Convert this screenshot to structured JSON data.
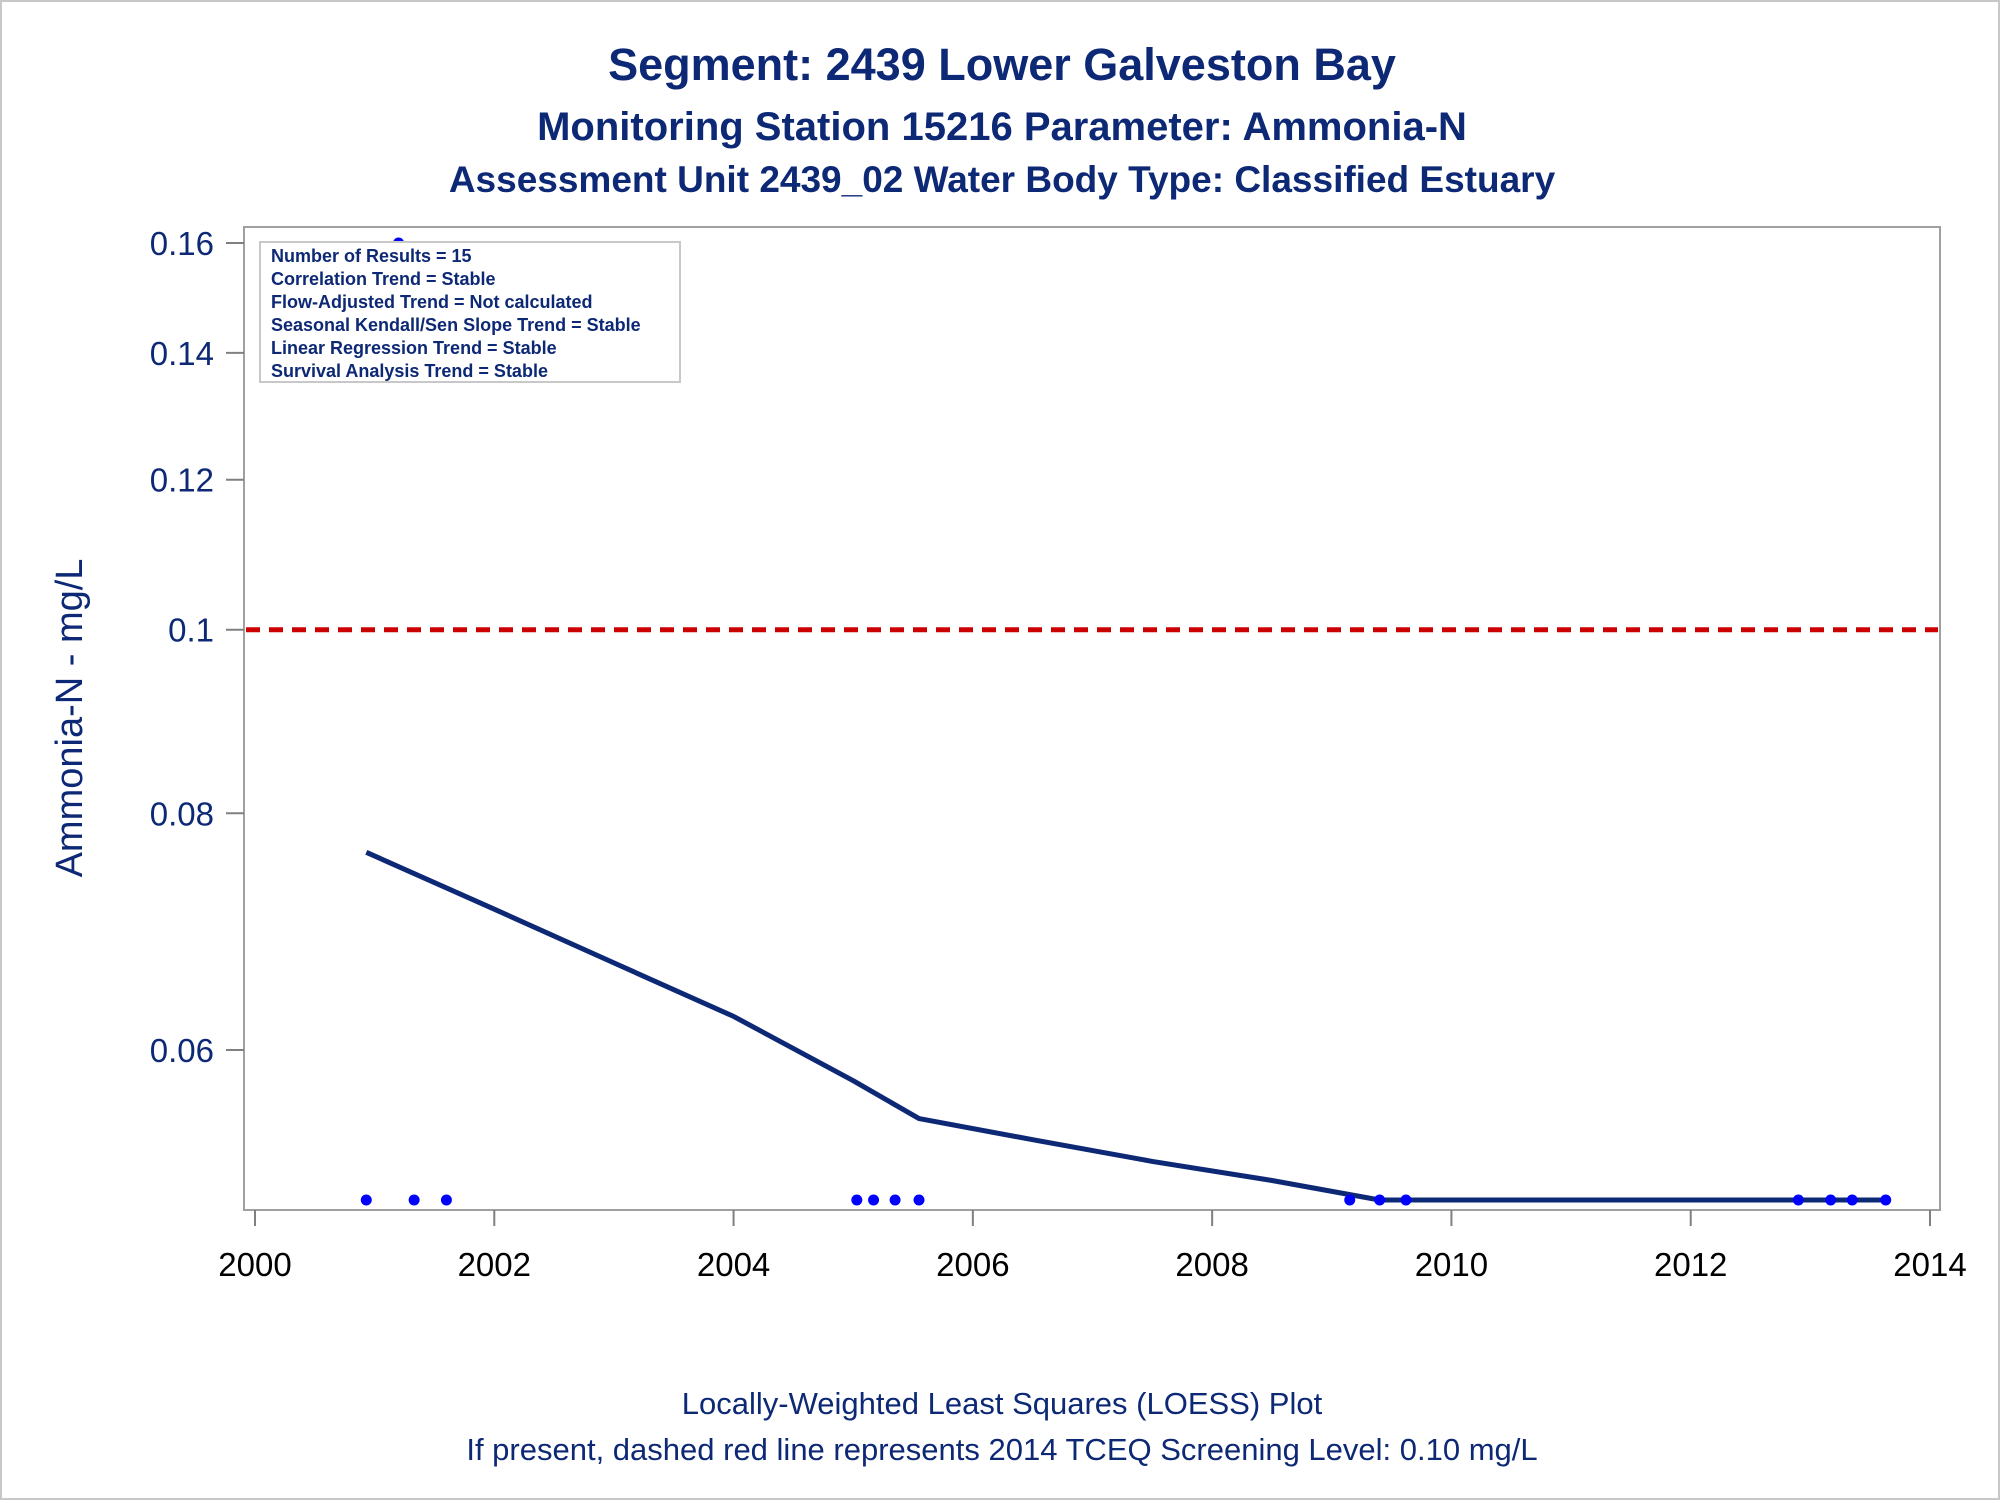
{
  "chart_data": {
    "type": "scatter",
    "title": "Segment: 2439  Lower Galveston Bay",
    "subtitle": "Monitoring Station 15216 Parameter: Ammonia-N",
    "subtitle2": "Assessment Unit 2439_02   Water Body Type: Classified Estuary",
    "xlabel": "",
    "ylabel": "Ammonia-N - mg/L",
    "y_scale": "log",
    "xlim": [
      2000,
      2014
    ],
    "ylim": [
      0.05,
      0.16
    ],
    "x_ticks": [
      2000,
      2002,
      2004,
      2006,
      2008,
      2010,
      2012,
      2014
    ],
    "x_tick_labels": [
      "2000",
      "2002",
      "2004",
      "2006",
      "2008",
      "2010",
      "2012",
      "2014"
    ],
    "y_ticks": [
      0.06,
      0.08,
      0.1,
      0.12,
      0.14,
      0.16
    ],
    "y_tick_labels": [
      "0.06",
      "0.08",
      "0.1",
      "0.12",
      "0.14",
      "0.16"
    ],
    "grid": false,
    "points_color": "#0000ff",
    "loess_color": "#0d2875",
    "screening_color": "#cc0000",
    "points": [
      {
        "x": 2000.93,
        "y": 0.05
      },
      {
        "x": 2001.2,
        "y": 0.16
      },
      {
        "x": 2001.33,
        "y": 0.05
      },
      {
        "x": 2001.6,
        "y": 0.05
      },
      {
        "x": 2005.03,
        "y": 0.05
      },
      {
        "x": 2005.17,
        "y": 0.05
      },
      {
        "x": 2005.35,
        "y": 0.05
      },
      {
        "x": 2005.55,
        "y": 0.05
      },
      {
        "x": 2009.15,
        "y": 0.05
      },
      {
        "x": 2009.4,
        "y": 0.05
      },
      {
        "x": 2009.62,
        "y": 0.05
      },
      {
        "x": 2012.9,
        "y": 0.05
      },
      {
        "x": 2013.17,
        "y": 0.05
      },
      {
        "x": 2013.35,
        "y": 0.05
      },
      {
        "x": 2013.63,
        "y": 0.05
      }
    ],
    "loess": [
      {
        "x": 2000.93,
        "y": 0.0763
      },
      {
        "x": 2002.0,
        "y": 0.0712
      },
      {
        "x": 2003.0,
        "y": 0.0667
      },
      {
        "x": 2004.0,
        "y": 0.0625
      },
      {
        "x": 2005.0,
        "y": 0.0578
      },
      {
        "x": 2005.55,
        "y": 0.0552
      },
      {
        "x": 2006.5,
        "y": 0.0538
      },
      {
        "x": 2007.5,
        "y": 0.0524
      },
      {
        "x": 2008.5,
        "y": 0.0512
      },
      {
        "x": 2009.4,
        "y": 0.05
      },
      {
        "x": 2013.63,
        "y": 0.05
      }
    ],
    "screening_level": 0.1,
    "legend_placement": "top-left",
    "stats": [
      "Number of Results = 15",
      "Correlation Trend = Stable",
      "Flow-Adjusted Trend = Not calculated",
      "Seasonal Kendall/Sen Slope Trend = Stable",
      "Linear Regression Trend = Stable",
      "Survival Analysis Trend = Stable"
    ],
    "footnote1": "Locally-Weighted Least Squares (LOESS) Plot",
    "footnote2": "If present, dashed red line represents 2014 TCEQ Screening Level: 0.10 mg/L"
  }
}
